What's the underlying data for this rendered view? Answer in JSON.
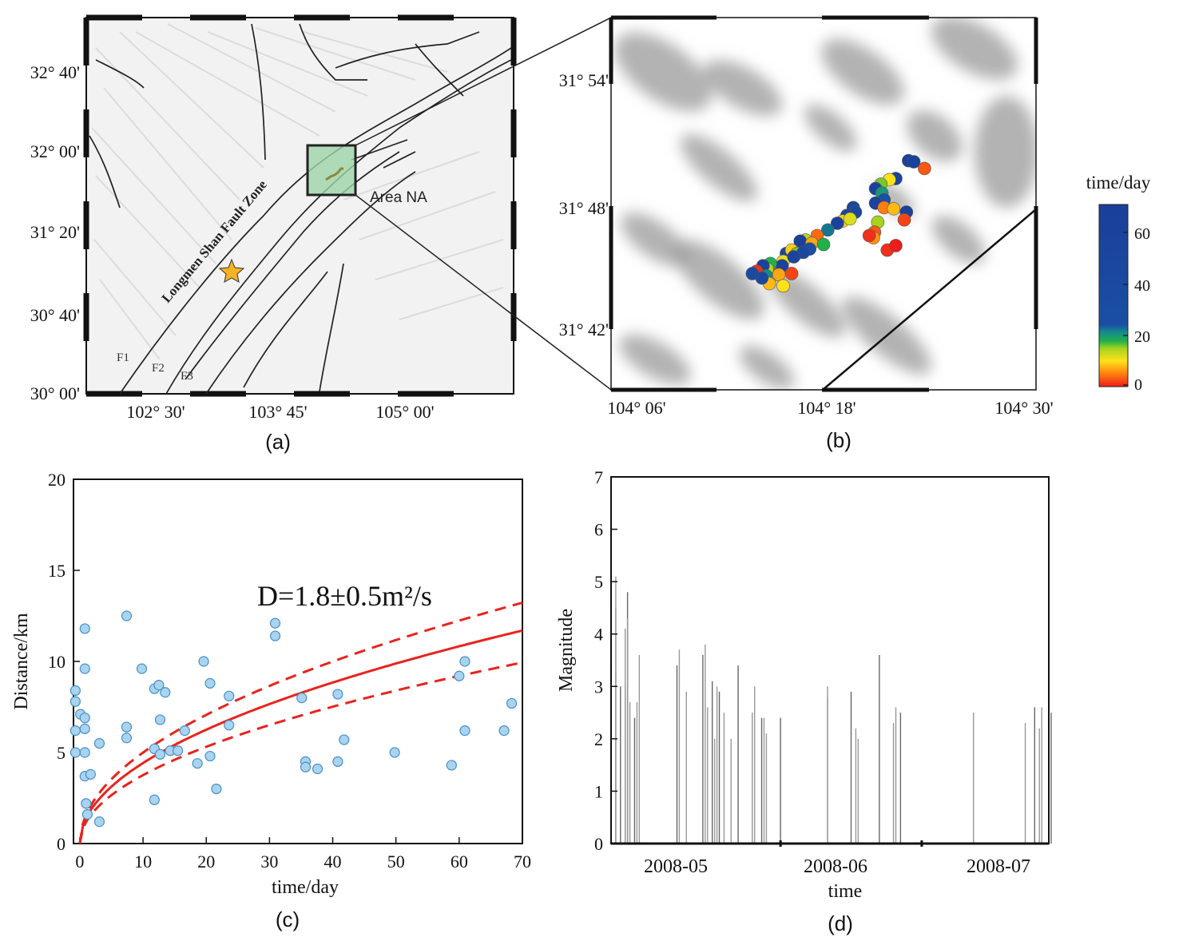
{
  "panel_a": {
    "caption": "(a)",
    "lat_labels": [
      "32° 40'",
      "32° 00'",
      "31° 20'",
      "30° 40'",
      "30° 00'"
    ],
    "lon_labels": [
      "102° 30'",
      "103° 45'",
      "105° 00'"
    ],
    "fault_zone_label": "Longmen Shan Fault Zone",
    "area_label": "Area NA",
    "fault_labels": [
      "F1",
      "F2",
      "F3"
    ],
    "star_color": "#f5b324"
  },
  "panel_b": {
    "caption": "(b)",
    "lat_labels": [
      "31° 54'",
      "31° 48'",
      "31° 42'"
    ],
    "lon_labels": [
      "104° 06'",
      "104° 18'",
      "104° 30'"
    ],
    "colorbar_title": "time/day",
    "colorbar_ticks": [
      "60",
      "40",
      "20",
      "0"
    ],
    "colorbar_range": [
      0,
      70
    ],
    "lon_range": [
      104.1,
      104.5
    ],
    "lat_range": [
      31.65,
      31.983
    ],
    "events": [
      {
        "lon": 104.38,
        "lat": 31.855,
        "t": 62
      },
      {
        "lon": 104.385,
        "lat": 31.854,
        "t": 65
      },
      {
        "lon": 104.395,
        "lat": 31.848,
        "t": 3
      },
      {
        "lon": 104.368,
        "lat": 31.839,
        "t": 55
      },
      {
        "lon": 104.362,
        "lat": 31.838,
        "t": 10
      },
      {
        "lon": 104.354,
        "lat": 31.834,
        "t": 16
      },
      {
        "lon": 104.349,
        "lat": 31.83,
        "t": 62
      },
      {
        "lon": 104.355,
        "lat": 31.826,
        "t": 20
      },
      {
        "lon": 104.357,
        "lat": 31.82,
        "t": 24
      },
      {
        "lon": 104.349,
        "lat": 31.817,
        "t": 58
      },
      {
        "lon": 104.357,
        "lat": 31.813,
        "t": 5
      },
      {
        "lon": 104.378,
        "lat": 31.809,
        "t": 60
      },
      {
        "lon": 104.376,
        "lat": 31.802,
        "t": 2
      },
      {
        "lon": 104.366,
        "lat": 31.812,
        "t": 8
      },
      {
        "lon": 104.351,
        "lat": 31.8,
        "t": 15
      },
      {
        "lon": 104.328,
        "lat": 31.813,
        "t": 50
      },
      {
        "lon": 104.33,
        "lat": 31.809,
        "t": 45
      },
      {
        "lon": 104.322,
        "lat": 31.806,
        "t": 56
      },
      {
        "lon": 104.318,
        "lat": 31.801,
        "t": 9
      },
      {
        "lon": 104.325,
        "lat": 31.803,
        "t": 12
      },
      {
        "lon": 104.313,
        "lat": 31.799,
        "t": 65
      },
      {
        "lon": 104.348,
        "lat": 31.791,
        "t": 3
      },
      {
        "lon": 104.347,
        "lat": 31.786,
        "t": 6
      },
      {
        "lon": 104.343,
        "lat": 31.788,
        "t": 1
      },
      {
        "lon": 104.304,
        "lat": 31.793,
        "t": 22
      },
      {
        "lon": 104.294,
        "lat": 31.788,
        "t": 4
      },
      {
        "lon": 104.283,
        "lat": 31.784,
        "t": 14
      },
      {
        "lon": 104.278,
        "lat": 31.783,
        "t": 68
      },
      {
        "lon": 104.289,
        "lat": 31.781,
        "t": 7
      },
      {
        "lon": 104.3,
        "lat": 31.78,
        "t": 18
      },
      {
        "lon": 104.287,
        "lat": 31.776,
        "t": 28
      },
      {
        "lon": 104.265,
        "lat": 31.772,
        "t": 50
      },
      {
        "lon": 104.27,
        "lat": 31.775,
        "t": 9
      },
      {
        "lon": 104.275,
        "lat": 31.772,
        "t": 16
      },
      {
        "lon": 104.281,
        "lat": 31.773,
        "t": 46
      },
      {
        "lon": 104.262,
        "lat": 31.765,
        "t": 11
      },
      {
        "lon": 104.272,
        "lat": 31.769,
        "t": 55
      },
      {
        "lon": 104.254,
        "lat": 31.759,
        "t": 3
      },
      {
        "lon": 104.261,
        "lat": 31.761,
        "t": 62
      },
      {
        "lon": 104.25,
        "lat": 31.763,
        "t": 18
      },
      {
        "lon": 104.247,
        "lat": 31.758,
        "t": 14
      },
      {
        "lon": 104.243,
        "lat": 31.761,
        "t": 60
      },
      {
        "lon": 104.246,
        "lat": 31.752,
        "t": 21
      },
      {
        "lon": 104.258,
        "lat": 31.753,
        "t": 7
      },
      {
        "lon": 104.237,
        "lat": 31.756,
        "t": 1
      },
      {
        "lon": 104.27,
        "lat": 31.754,
        "t": 2
      },
      {
        "lon": 104.249,
        "lat": 31.745,
        "t": 8
      },
      {
        "lon": 104.262,
        "lat": 31.743,
        "t": 10
      },
      {
        "lon": 104.242,
        "lat": 31.75,
        "t": 43
      },
      {
        "lon": 104.233,
        "lat": 31.754,
        "t": 36
      },
      {
        "lon": 104.36,
        "lat": 31.775,
        "t": 1
      },
      {
        "lon": 104.368,
        "lat": 31.779,
        "t": 0
      }
    ]
  },
  "panel_c": {
    "caption": "(c)",
    "annotation": "D=1.8±0.5m²/s",
    "chart_data": {
      "type": "scatter",
      "xlabel": "time/day",
      "ylabel": "Distance/km",
      "xlim": [
        -1,
        70
      ],
      "ylim": [
        0,
        20
      ],
      "xticks": [
        0,
        10,
        20,
        30,
        40,
        50,
        60,
        70
      ],
      "yticks": [
        0,
        5,
        10,
        15,
        20
      ],
      "D_central": 1.8,
      "D_upper": 2.3,
      "D_lower": 1.3,
      "points": [
        [
          -0.7,
          8.4
        ],
        [
          -0.7,
          7.8
        ],
        [
          -0.7,
          6.2
        ],
        [
          -0.7,
          5.0
        ],
        [
          0.1,
          7.1
        ],
        [
          0.8,
          11.8
        ],
        [
          0.8,
          9.6
        ],
        [
          0.8,
          6.9
        ],
        [
          0.8,
          6.3
        ],
        [
          0.8,
          5.0
        ],
        [
          0.8,
          3.7
        ],
        [
          1.0,
          2.2
        ],
        [
          1.2,
          1.6
        ],
        [
          1.7,
          3.8
        ],
        [
          3.1,
          5.5
        ],
        [
          3.1,
          1.2
        ],
        [
          7.4,
          12.5
        ],
        [
          7.4,
          6.4
        ],
        [
          7.4,
          5.8
        ],
        [
          9.8,
          9.6
        ],
        [
          11.8,
          8.5
        ],
        [
          11.8,
          5.2
        ],
        [
          11.8,
          2.4
        ],
        [
          12.5,
          8.7
        ],
        [
          12.7,
          6.8
        ],
        [
          12.7,
          4.9
        ],
        [
          13.5,
          8.3
        ],
        [
          14.3,
          5.1
        ],
        [
          15.5,
          5.1
        ],
        [
          16.6,
          6.2
        ],
        [
          18.6,
          4.4
        ],
        [
          19.6,
          10.0
        ],
        [
          20.6,
          8.8
        ],
        [
          20.6,
          4.8
        ],
        [
          21.6,
          3.0
        ],
        [
          23.6,
          8.1
        ],
        [
          23.6,
          6.5
        ],
        [
          30.9,
          12.1
        ],
        [
          30.9,
          11.4
        ],
        [
          35.1,
          8.0
        ],
        [
          35.7,
          4.5
        ],
        [
          35.7,
          4.2
        ],
        [
          37.6,
          4.1
        ],
        [
          40.8,
          8.2
        ],
        [
          40.8,
          4.5
        ],
        [
          41.8,
          5.7
        ],
        [
          49.8,
          5.0
        ],
        [
          58.8,
          4.3
        ],
        [
          60.0,
          9.2
        ],
        [
          60.9,
          10.0
        ],
        [
          60.9,
          6.2
        ],
        [
          67.1,
          6.2
        ],
        [
          68.3,
          7.7
        ]
      ]
    }
  },
  "panel_d": {
    "caption": "(d)",
    "chart_data": {
      "type": "bar",
      "xlabel": "time",
      "ylabel": "Magnitude",
      "ylim": [
        0,
        7
      ],
      "yticks": [
        0,
        1,
        2,
        3,
        4,
        5,
        6,
        7
      ],
      "date_labels": [
        "2008-05",
        "2008-06",
        "2008-07"
      ],
      "x_range_days_from_2008-05-01": [
        -15,
        78
      ],
      "events": [
        [
          -14,
          3.3
        ],
        [
          -14,
          5.1
        ],
        [
          -14,
          4.5
        ],
        [
          -13,
          3.0
        ],
        [
          -12,
          4.1
        ],
        [
          -12,
          3.0
        ],
        [
          -11.5,
          4.8
        ],
        [
          -11.5,
          4.3
        ],
        [
          -11,
          2.7
        ],
        [
          -10,
          2.4
        ],
        [
          -9.5,
          2.7
        ],
        [
          -9,
          3.6
        ],
        [
          -1,
          3.4
        ],
        [
          -0.5,
          3.7
        ],
        [
          1,
          2.9
        ],
        [
          4.5,
          3.6
        ],
        [
          5,
          3.8
        ],
        [
          5.5,
          2.6
        ],
        [
          6.5,
          3.1
        ],
        [
          7,
          2.0
        ],
        [
          7.5,
          3.0
        ],
        [
          8,
          2.9
        ],
        [
          9,
          2.5
        ],
        [
          10.5,
          2.0
        ],
        [
          12,
          3.4
        ],
        [
          15,
          2.5
        ],
        [
          15.5,
          3.0
        ],
        [
          17,
          2.4
        ],
        [
          17.5,
          2.4
        ],
        [
          18,
          2.1
        ],
        [
          21,
          2.4
        ],
        [
          31,
          3.0
        ],
        [
          31,
          2.8
        ],
        [
          36,
          2.9
        ],
        [
          37,
          2.2
        ],
        [
          37.5,
          2.0
        ],
        [
          42,
          3.6
        ],
        [
          45,
          2.3
        ],
        [
          45.5,
          2.6
        ],
        [
          46.5,
          2.5
        ],
        [
          62,
          2.5
        ],
        [
          73,
          2.3
        ],
        [
          75,
          2.6
        ],
        [
          76,
          2.2
        ],
        [
          76.5,
          2.6
        ],
        [
          78.5,
          2.5
        ]
      ]
    }
  }
}
